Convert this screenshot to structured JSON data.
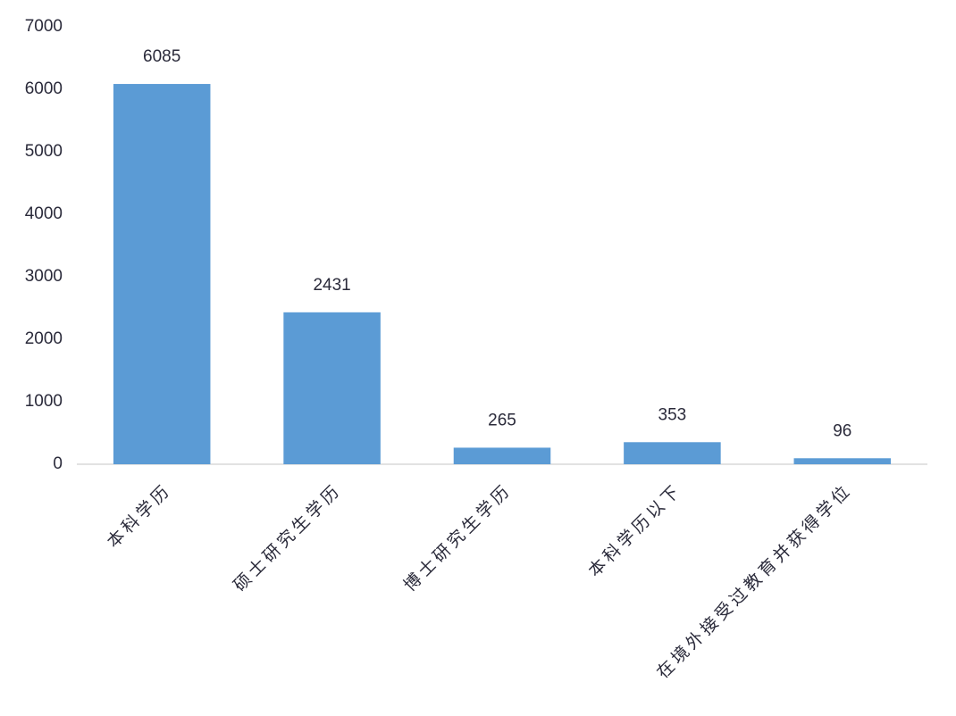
{
  "chart_data": {
    "type": "bar",
    "categories": [
      "本科学历",
      "硕士研究生学历",
      "博士研究生学历",
      "本科学历以下",
      "在境外接受过教育并获得学位"
    ],
    "values": [
      6085,
      2431,
      265,
      353,
      96
    ],
    "color": "#5b9bd5",
    "ylim": [
      0,
      7000
    ],
    "yticks": [
      0,
      1000,
      2000,
      3000,
      4000,
      5000,
      6000,
      7000
    ],
    "grid": false,
    "data_labels": true
  }
}
